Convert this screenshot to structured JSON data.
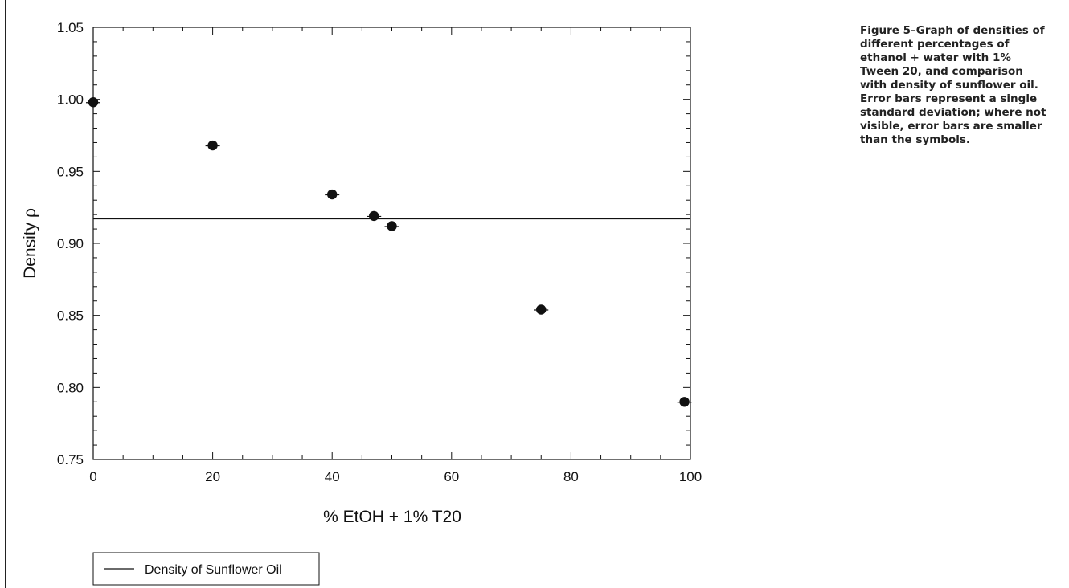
{
  "caption": "Figure 5–Graph of densities of different percentages of ethanol + water with 1% Tween 20, and comparison with density of sunflower oil. Error bars represent a single standard deviation; where not visible, error bars are smaller than the symbols.",
  "chart_data": {
    "type": "scatter",
    "title": "",
    "xlabel": "% EtOH + 1% T20",
    "ylabel": "Density ρ",
    "xlim": [
      0,
      100
    ],
    "ylim": [
      0.75,
      1.05
    ],
    "xticks": [
      0,
      20,
      40,
      60,
      80,
      100
    ],
    "yticks": [
      0.75,
      0.8,
      0.85,
      0.9,
      0.95,
      1.0,
      1.05
    ],
    "xtick_labels": [
      "0",
      "20",
      "40",
      "60",
      "80",
      "100"
    ],
    "ytick_labels": [
      "0.75",
      "0.80",
      "0.85",
      "0.90",
      "0.95",
      "1.00",
      "1.05"
    ],
    "grid": false,
    "legend_position": "bottom-left, below plot",
    "series": [
      {
        "values": [
          {
            "x": 0,
            "y": 0.998
          },
          {
            "x": 20,
            "y": 0.968
          },
          {
            "x": 40,
            "y": 0.934
          },
          {
            "x": 47,
            "y": 0.919
          },
          {
            "x": 50,
            "y": 0.912
          },
          {
            "x": 75,
            "y": 0.854
          },
          {
            "x": 99,
            "y": 0.79
          }
        ],
        "color": "#111111",
        "marker": "filled-circle"
      },
      {
        "name": "Density of Sunflower Oil",
        "type": "hline",
        "y": 0.917,
        "color": "#111111"
      }
    ]
  }
}
